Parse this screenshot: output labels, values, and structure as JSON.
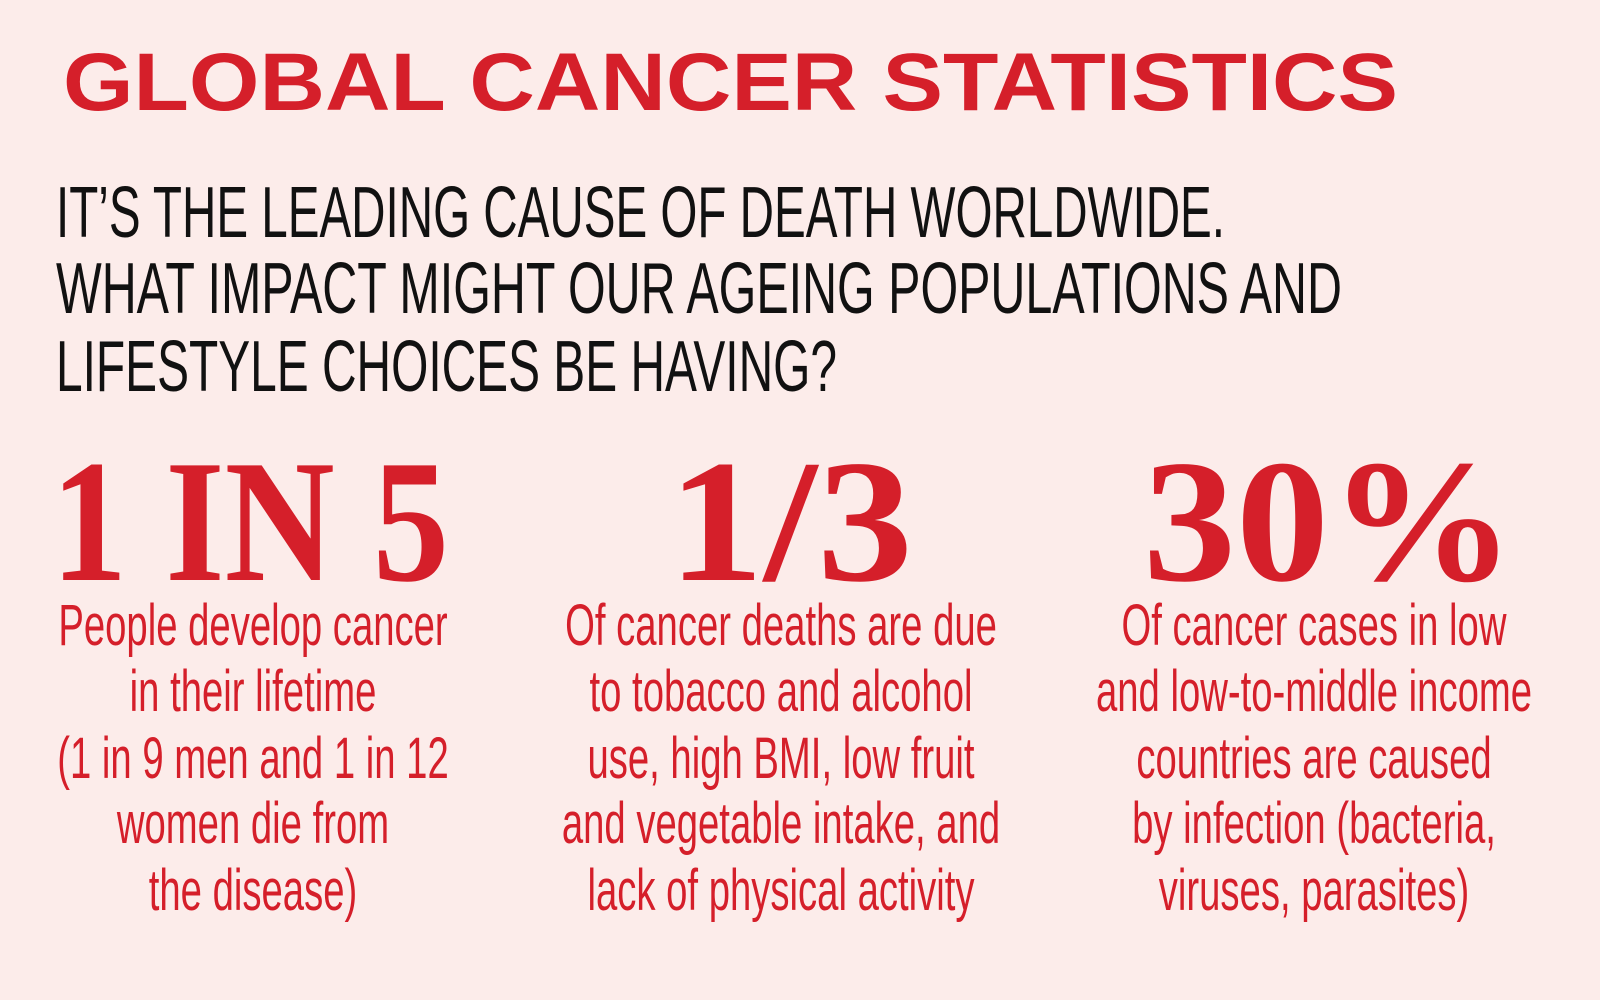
{
  "title": "GLOBAL CANCER STATISTICS",
  "intro": {
    "lines": [
      "IT’S THE LEADING CAUSE OF DEATH WORLDWIDE.",
      "WHAT IMPACT MIGHT OUR AGEING POPULATIONS AND",
      "LIFESTYLE CHOICES BE HAVING?"
    ]
  },
  "stats": [
    {
      "figure": "1 IN 5",
      "description": [
        "People develop cancer",
        "in their lifetime",
        "(1 in 9 men and 1 in 12",
        "women die from",
        "the disease)"
      ]
    },
    {
      "figure": "1/3",
      "description": [
        "Of cancer deaths are due",
        "to tobacco and alcohol",
        "use, high BMI, low fruit",
        "and vegetable intake, and",
        "lack of physical activity"
      ]
    },
    {
      "figure": "30%",
      "description": [
        "Of cancer cases in low",
        "and low-to-middle income",
        "countries are caused",
        "by infection (bacteria,",
        "viruses, parasites)"
      ]
    }
  ]
}
